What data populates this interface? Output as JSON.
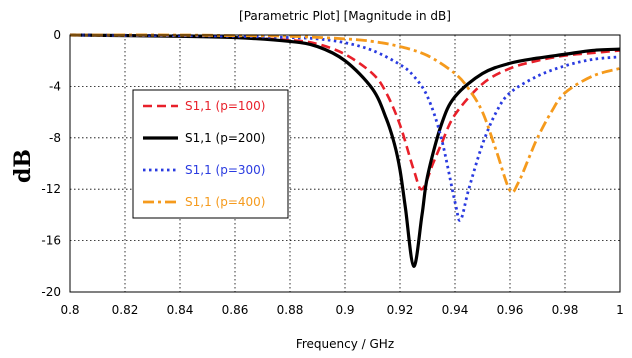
{
  "chart_data": {
    "type": "line",
    "title": "[Parametric Plot] [Magnitude in dB]",
    "xlabel": "Frequency / GHz",
    "ylabel": "dB",
    "xlim": [
      0.8,
      1.0
    ],
    "ylim": [
      -20,
      0
    ],
    "xticks": [
      "0.8",
      "0.82",
      "0.84",
      "0.86",
      "0.88",
      "0.9",
      "0.92",
      "0.94",
      "0.96",
      "0.98",
      "1"
    ],
    "yticks": [
      "0",
      "-4",
      "-8",
      "-12",
      "-16",
      "-20"
    ],
    "grid": true,
    "legend_position": "left",
    "series": [
      {
        "name": "S1,1 (p=100)",
        "color": "#e8202a",
        "style": "dashed",
        "x": [
          0.8,
          0.84,
          0.86,
          0.88,
          0.89,
          0.9,
          0.91,
          0.915,
          0.92,
          0.925,
          0.928,
          0.932,
          0.935,
          0.94,
          0.95,
          0.96,
          0.97,
          0.98,
          0.99,
          1.0
        ],
        "y": [
          0,
          -0.1,
          -0.2,
          -0.4,
          -0.7,
          -1.5,
          -3.0,
          -4.5,
          -7.0,
          -10.5,
          -12.0,
          -10.0,
          -8.5,
          -6.2,
          -3.8,
          -2.6,
          -2.0,
          -1.6,
          -1.4,
          -1.2
        ]
      },
      {
        "name": "S1,1 (p=200)",
        "color": "#000000",
        "style": "solid",
        "x": [
          0.8,
          0.84,
          0.86,
          0.88,
          0.89,
          0.9,
          0.91,
          0.915,
          0.918,
          0.92,
          0.922,
          0.925,
          0.928,
          0.93,
          0.935,
          0.94,
          0.95,
          0.96,
          0.97,
          0.98,
          0.99,
          1.0
        ],
        "y": [
          0,
          -0.1,
          -0.2,
          -0.5,
          -0.9,
          -2.0,
          -4.2,
          -6.5,
          -8.5,
          -10.5,
          -13.5,
          -18.0,
          -14.0,
          -11.0,
          -7.0,
          -4.8,
          -3.0,
          -2.2,
          -1.8,
          -1.5,
          -1.2,
          -1.1
        ]
      },
      {
        "name": "S1,1 (p=300)",
        "color": "#2a3be0",
        "style": "dotted",
        "x": [
          0.8,
          0.84,
          0.86,
          0.88,
          0.89,
          0.9,
          0.91,
          0.92,
          0.925,
          0.93,
          0.935,
          0.94,
          0.942,
          0.945,
          0.95,
          0.955,
          0.96,
          0.97,
          0.98,
          0.99,
          1.0
        ],
        "y": [
          0,
          -0.05,
          -0.1,
          -0.2,
          -0.3,
          -0.6,
          -1.2,
          -2.3,
          -3.2,
          -4.8,
          -8.0,
          -13.0,
          -14.4,
          -12.0,
          -8.5,
          -6.0,
          -4.5,
          -3.2,
          -2.4,
          -1.9,
          -1.7
        ]
      },
      {
        "name": "S1,1 (p=400)",
        "color": "#f59a1c",
        "style": "dashdot",
        "x": [
          0.8,
          0.84,
          0.86,
          0.88,
          0.9,
          0.91,
          0.92,
          0.93,
          0.94,
          0.945,
          0.95,
          0.955,
          0.96,
          0.963,
          0.967,
          0.97,
          0.975,
          0.98,
          0.99,
          1.0
        ],
        "y": [
          0,
          0,
          -0.05,
          -0.1,
          -0.3,
          -0.5,
          -0.9,
          -1.6,
          -3.0,
          -4.2,
          -6.0,
          -9.0,
          -12.1,
          -11.5,
          -9.5,
          -8.0,
          -6.0,
          -4.5,
          -3.2,
          -2.6
        ]
      }
    ]
  }
}
